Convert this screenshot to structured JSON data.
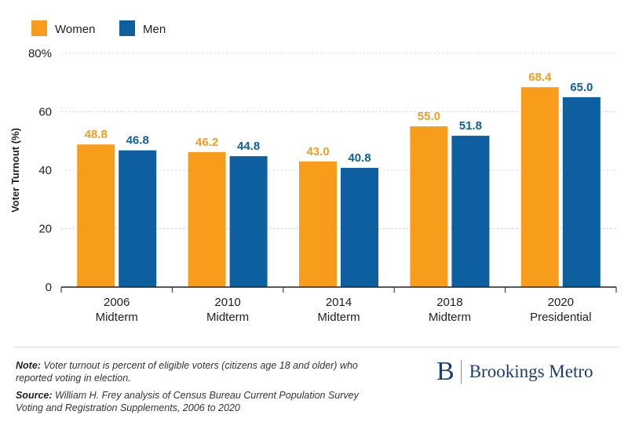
{
  "chart_data": {
    "type": "bar",
    "title": "",
    "ylabel": "Voter Turnout (%)",
    "xlabel": "",
    "ylim": [
      0,
      80
    ],
    "yticks": [
      {
        "value": 0,
        "label": "0"
      },
      {
        "value": 20,
        "label": "20"
      },
      {
        "value": 40,
        "label": "40"
      },
      {
        "value": 60,
        "label": "60"
      },
      {
        "value": 80,
        "label": "80%"
      }
    ],
    "categories": [
      {
        "year": "2006",
        "kind": "Midterm"
      },
      {
        "year": "2010",
        "kind": "Midterm"
      },
      {
        "year": "2014",
        "kind": "Midterm"
      },
      {
        "year": "2018",
        "kind": "Midterm"
      },
      {
        "year": "2020",
        "kind": "Presidential"
      }
    ],
    "series": [
      {
        "name": "Women",
        "color": "#f89c1c",
        "values": [
          48.8,
          46.2,
          43.0,
          55.0,
          68.4
        ],
        "labels": [
          "48.8",
          "46.2",
          "43.0",
          "55.0",
          "68.4"
        ]
      },
      {
        "name": "Men",
        "color": "#0d5fa0",
        "values": [
          46.8,
          44.8,
          40.8,
          51.8,
          65.0
        ],
        "labels": [
          "46.8",
          "44.8",
          "40.8",
          "51.8",
          "65.0"
        ]
      }
    ],
    "legend": "top-left",
    "grid": true
  },
  "footer": {
    "note_label": "Note:",
    "note_text": " Voter turnout is percent of eligible voters (citizens age 18 and older) who reported voting in election.",
    "source_label": "Source:",
    "source_text": " William H. Frey analysis of Census Bureau Current Population Survey Voting and Registration Supplements, 2006 to 2020"
  },
  "brand": {
    "mark": "B",
    "name": "Brookings Metro",
    "color": "#1c3d73"
  }
}
